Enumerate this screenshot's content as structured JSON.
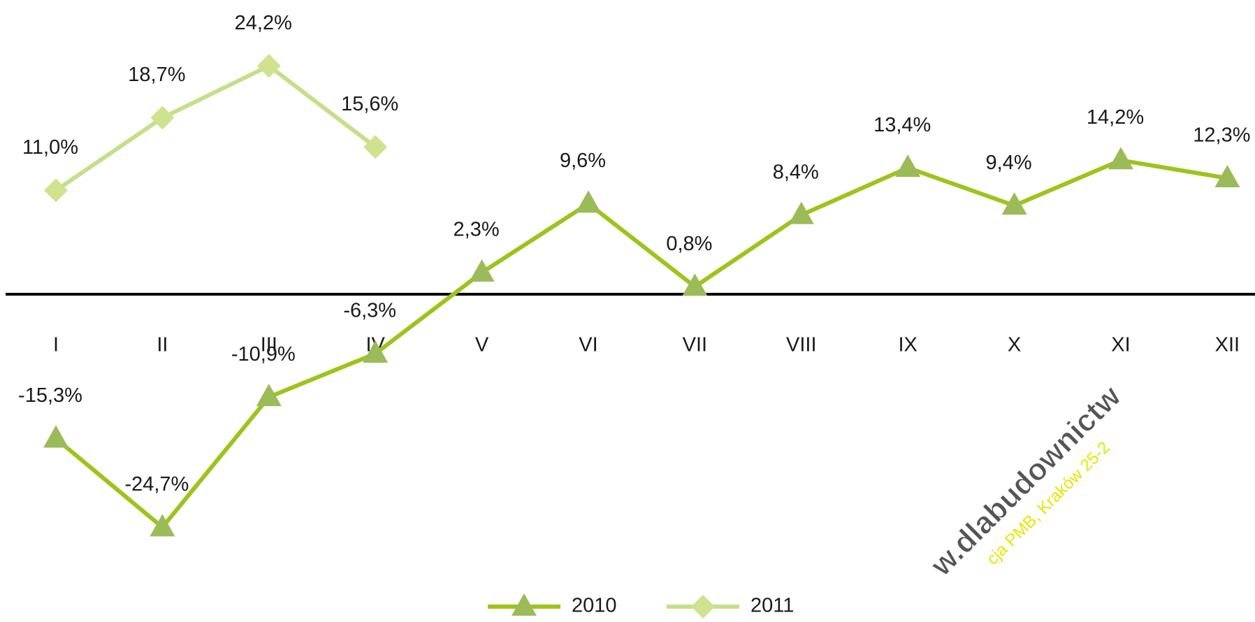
{
  "chart_data": {
    "type": "line",
    "categories": [
      "I",
      "II",
      "III",
      "IV",
      "V",
      "VI",
      "VII",
      "VIII",
      "IX",
      "X",
      "XI",
      "XII"
    ],
    "series": [
      {
        "name": "2010",
        "color": "#9dc41a",
        "marker_color": "#9bbb59",
        "marker": "triangle",
        "values": [
          -15.3,
          -24.7,
          -10.9,
          -6.3,
          2.3,
          9.6,
          0.8,
          8.4,
          13.4,
          9.4,
          14.2,
          12.3
        ],
        "value_labels": [
          "-15,3%",
          "-24,7%",
          "-10,9%",
          "-6,3%",
          "2,3%",
          "9,6%",
          "0,8%",
          "8,4%",
          "13,4%",
          "9,4%",
          "14,2%",
          "12,3%"
        ]
      },
      {
        "name": "2011",
        "color": "#c5df8a",
        "marker_color": "#cfe38f",
        "marker": "diamond",
        "values": [
          11.0,
          18.7,
          24.2,
          15.6,
          null,
          null,
          null,
          null,
          null,
          null,
          null,
          null
        ],
        "value_labels": [
          "11,0%",
          "18,7%",
          "24,2%",
          "15,6%",
          null,
          null,
          null,
          null,
          null,
          null,
          null,
          null
        ]
      }
    ],
    "ylim": [
      -30,
      30
    ],
    "legend": "bottom",
    "annotations": [
      "w.dlabudownictw",
      "cja PMB, Kraków 25-2"
    ]
  }
}
